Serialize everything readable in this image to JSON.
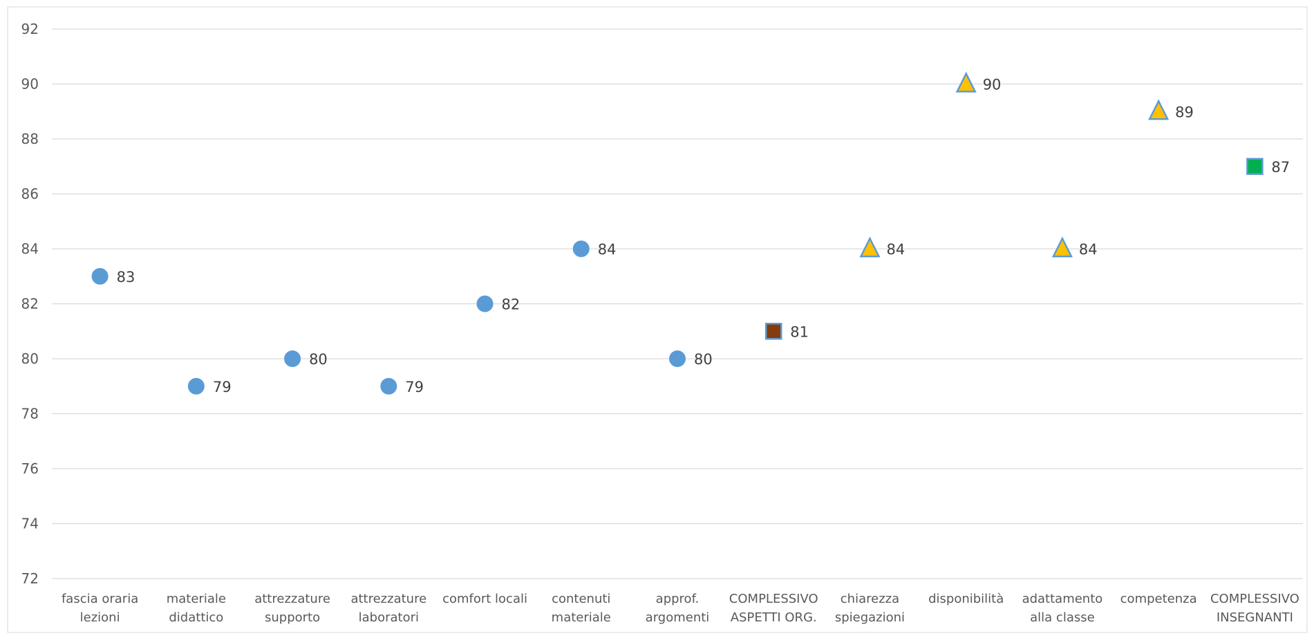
{
  "chart_data": {
    "type": "scatter",
    "title": "",
    "xlabel": "",
    "ylabel": "",
    "ylim": [
      72,
      92
    ],
    "ytick_step": 2,
    "grid": true,
    "legend": "none",
    "categories": [
      [
        "fascia oraria",
        "lezioni"
      ],
      [
        "materiale",
        "didattico"
      ],
      [
        "attrezzature",
        "supporto"
      ],
      [
        "attrezzature",
        "laboratori"
      ],
      [
        "comfort locali"
      ],
      [
        "contenuti",
        "materiale"
      ],
      [
        "approf.",
        "argomenti"
      ],
      [
        "COMPLESSIVO",
        "ASPETTI ORG."
      ],
      [
        "chiarezza",
        "spiegazioni"
      ],
      [
        "disponibilità"
      ],
      [
        "adattamento",
        "alla classe"
      ],
      [
        "competenza"
      ],
      [
        "COMPLESSIVO",
        "INSEGNANTI"
      ]
    ],
    "points": [
      {
        "value": 83,
        "label": "83",
        "marker": "circle",
        "color": "#5b9bd5"
      },
      {
        "value": 79,
        "label": "79",
        "marker": "circle",
        "color": "#5b9bd5"
      },
      {
        "value": 80,
        "label": "80",
        "marker": "circle",
        "color": "#5b9bd5"
      },
      {
        "value": 79,
        "label": "79",
        "marker": "circle",
        "color": "#5b9bd5"
      },
      {
        "value": 82,
        "label": "82",
        "marker": "circle",
        "color": "#5b9bd5"
      },
      {
        "value": 84,
        "label": "84",
        "marker": "circle",
        "color": "#5b9bd5"
      },
      {
        "value": 80,
        "label": "80",
        "marker": "circle",
        "color": "#5b9bd5"
      },
      {
        "value": 81,
        "label": "81",
        "marker": "square",
        "color": "#843c0c"
      },
      {
        "value": 84,
        "label": "84",
        "marker": "triangle",
        "color": "#ffc000"
      },
      {
        "value": 90,
        "label": "90",
        "marker": "triangle",
        "color": "#ffc000"
      },
      {
        "value": 84,
        "label": "84",
        "marker": "triangle",
        "color": "#ffc000"
      },
      {
        "value": 89,
        "label": "89",
        "marker": "triangle",
        "color": "#ffc000"
      },
      {
        "value": 87,
        "label": "87",
        "marker": "square",
        "color": "#00b050"
      }
    ],
    "marker_outline_color": "#5b9bd5"
  }
}
